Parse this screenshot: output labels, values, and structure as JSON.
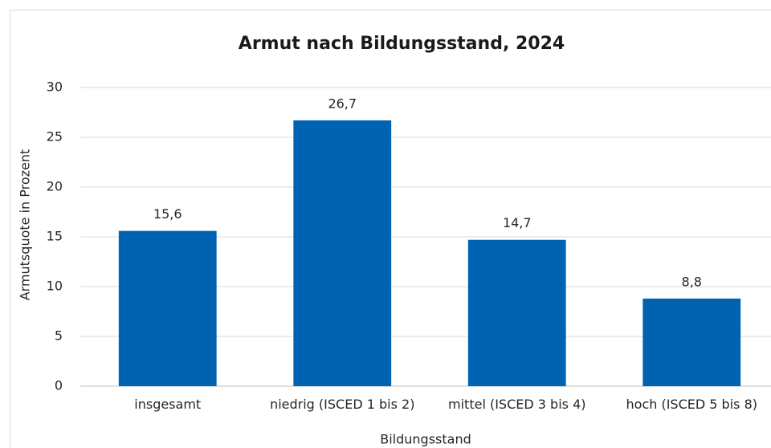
{
  "chart_data": {
    "type": "bar",
    "title": "Armut nach Bildungsstand, 2024",
    "y_label": "Armutsquote in Prozent",
    "x_label": "Bildungsstand",
    "categories": [
      "insgesamt",
      "niedrig (ISCED 1 bis 2)",
      "mittel (ISCED 3 bis 4)",
      "hoch (ISCED 5 bis 8)"
    ],
    "values": [
      15.6,
      26.7,
      14.7,
      8.8
    ],
    "value_labels": [
      "15,6",
      "26,7",
      "14,7",
      "8,8"
    ],
    "color": "#0063b1",
    "ylim": [
      0,
      30
    ],
    "yticks": [
      0,
      5,
      10,
      15,
      20,
      25,
      30
    ],
    "grid": true
  }
}
